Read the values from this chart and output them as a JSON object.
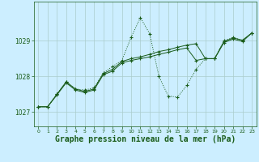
{
  "title": "Graphe pression niveau de la mer (hPa)",
  "bg_color": "#cceeff",
  "grid_color": "#aacccc",
  "line_color": "#1a5c1a",
  "xlim": [
    -0.5,
    23.5
  ],
  "ylim": [
    1026.6,
    1030.1
  ],
  "yticks": [
    1027,
    1028,
    1029
  ],
  "xticks": [
    0,
    1,
    2,
    3,
    4,
    5,
    6,
    7,
    8,
    9,
    10,
    11,
    12,
    13,
    14,
    15,
    16,
    17,
    18,
    19,
    20,
    21,
    22,
    23
  ],
  "main_line": [
    1027.15,
    1027.15,
    1027.5,
    1027.85,
    1027.65,
    1027.62,
    1027.68,
    1028.1,
    1028.28,
    1028.45,
    1029.1,
    1029.65,
    1029.2,
    1028.0,
    1027.45,
    1027.42,
    1027.75,
    1028.2,
    1028.5,
    1028.5,
    1029.0,
    1029.1,
    1029.0,
    1029.22
  ],
  "trend1": [
    1027.15,
    1027.15,
    1027.5,
    1027.85,
    1027.65,
    1027.58,
    1027.65,
    1028.08,
    1028.2,
    1028.42,
    1028.5,
    1028.55,
    1028.62,
    1028.7,
    1028.75,
    1028.82,
    1028.88,
    1028.92,
    1028.5,
    1028.5,
    1028.98,
    1029.08,
    1029.02,
    1029.22
  ],
  "trend2": [
    1027.15,
    1027.15,
    1027.48,
    1027.82,
    1027.62,
    1027.55,
    1027.62,
    1028.05,
    1028.15,
    1028.38,
    1028.45,
    1028.5,
    1028.55,
    1028.62,
    1028.68,
    1028.75,
    1028.8,
    1028.45,
    1028.5,
    1028.5,
    1028.95,
    1029.05,
    1028.98,
    1029.22
  ],
  "marker": "+",
  "markersize": 3,
  "linewidth": 0.7,
  "title_fontsize": 7,
  "tick_fontsize": 5.5
}
